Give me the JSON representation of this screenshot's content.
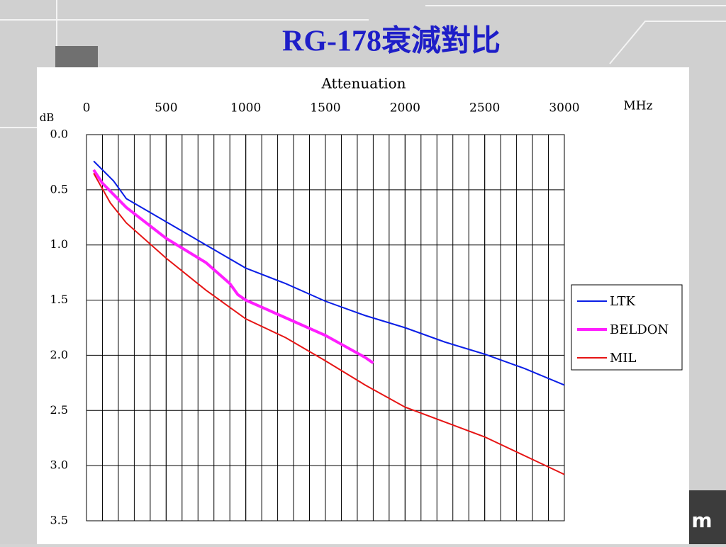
{
  "slide_title": "RG-178衰減對比",
  "corner_text": "m",
  "chart_data": {
    "type": "line",
    "title": "Attenuation",
    "x_unit": "MHz",
    "y_label": "dB",
    "xlim": [
      0,
      3000
    ],
    "xticks": [
      0,
      500,
      1000,
      1500,
      2000,
      2500,
      3000
    ],
    "xgrid": [
      100,
      200,
      300,
      400,
      500,
      600,
      700,
      800,
      900,
      1000,
      1100,
      1200,
      1300,
      1400,
      1500,
      1600,
      1700,
      1800,
      1900,
      2000,
      2100,
      2200,
      2300,
      2400,
      2500,
      2600,
      2700,
      2800,
      2900
    ],
    "ylim": [
      0,
      3.5
    ],
    "y_inverted": true,
    "yticks": [
      {
        "value": 0,
        "label": "0.0"
      },
      {
        "value": 0.5,
        "label": "0.5"
      },
      {
        "value": 1,
        "label": "1.0"
      },
      {
        "value": 1.5,
        "label": "1.5"
      },
      {
        "value": 2,
        "label": "2.0"
      },
      {
        "value": 2.5,
        "label": "2.5"
      },
      {
        "value": 3,
        "label": "3.0"
      },
      {
        "value": 3.5,
        "label": "3.5"
      }
    ],
    "grid": true,
    "legend": "right",
    "series": [
      {
        "name": "LTK",
        "color": "#0a1ee6",
        "width": 2,
        "x": [
          45,
          170,
          250,
          500,
          750,
          1000,
          1250,
          1500,
          1750,
          2000,
          2250,
          2500,
          2750,
          3000
        ],
        "values": [
          0.24,
          0.42,
          0.58,
          0.79,
          1.0,
          1.21,
          1.35,
          1.51,
          1.64,
          1.75,
          1.88,
          1.99,
          2.12,
          2.27
        ]
      },
      {
        "name": "BELDON",
        "color": "#ff1eff",
        "width": 4,
        "x": [
          45,
          100,
          250,
          500,
          750,
          900,
          950,
          1000,
          1250,
          1500,
          1750,
          1800
        ],
        "values": [
          0.32,
          0.44,
          0.66,
          0.94,
          1.16,
          1.35,
          1.45,
          1.5,
          1.66,
          1.82,
          2.02,
          2.07
        ]
      },
      {
        "name": "MIL",
        "color": "#e61414",
        "width": 2,
        "x": [
          45,
          150,
          250,
          500,
          750,
          1000,
          1250,
          1500,
          1750,
          2000,
          2500,
          3000
        ],
        "values": [
          0.35,
          0.62,
          0.8,
          1.12,
          1.41,
          1.67,
          1.84,
          2.05,
          2.27,
          2.47,
          2.74,
          3.08
        ]
      }
    ]
  }
}
